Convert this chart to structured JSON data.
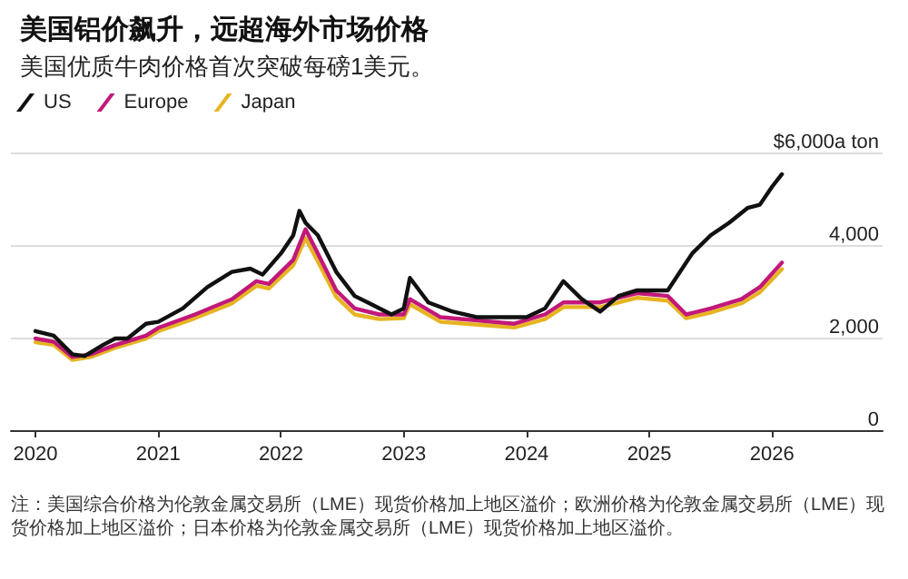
{
  "chart_data": {
    "type": "line",
    "title": "美国铝价飙升，远超海外市场价格",
    "subtitle": "美国优质牛肉价格首次突破每磅1美元。",
    "annotations": [
      "注：美国综合价格为伦敦金属交易所（LME）现货价格加上地区溢价；欧洲价格为伦敦金属交易所（LME）现货价格加上地区溢价；日本价格为伦敦金属交易所（LME）现货价格加上地区溢价。"
    ],
    "xlim": [
      2019.8,
      2026.9
    ],
    "xticks": [
      2020,
      2021,
      2022,
      2023,
      2024,
      2025,
      2026
    ],
    "ylim": [
      0,
      6000
    ],
    "yticks": [
      {
        "value": 0,
        "label": "0"
      },
      {
        "value": 2000,
        "label": "2,000"
      },
      {
        "value": 4000,
        "label": "4,000"
      },
      {
        "value": 6000,
        "label": "$6,000a ton"
      }
    ],
    "grid": "y",
    "legend": "top left",
    "marker": "none",
    "line_style": "solid",
    "series": [
      {
        "name": "Japan",
        "color": "#e6b422",
        "x": [
          2020.0,
          2020.15,
          2020.3,
          2020.45,
          2020.65,
          2020.9,
          2021.0,
          2021.3,
          2021.6,
          2021.8,
          2021.9,
          2022.1,
          2022.2,
          2022.3,
          2022.45,
          2022.6,
          2022.8,
          2023.0,
          2023.05,
          2023.3,
          2023.6,
          2023.9,
          2024.15,
          2024.3,
          2024.6,
          2024.9,
          2025.15,
          2025.3,
          2025.5,
          2025.75,
          2025.9,
          2026.08
        ],
        "values": [
          1900,
          1840,
          1520,
          1580,
          1780,
          1980,
          2140,
          2420,
          2740,
          3120,
          3060,
          3560,
          4150,
          3650,
          2880,
          2500,
          2400,
          2420,
          2720,
          2340,
          2280,
          2220,
          2400,
          2660,
          2660,
          2860,
          2800,
          2420,
          2540,
          2740,
          2980,
          3480
        ]
      },
      {
        "name": "Europe",
        "color": "#c2187a",
        "x": [
          2020.0,
          2020.15,
          2020.3,
          2020.45,
          2020.65,
          2020.9,
          2021.0,
          2021.3,
          2021.6,
          2021.8,
          2021.9,
          2022.1,
          2022.2,
          2022.3,
          2022.45,
          2022.6,
          2022.8,
          2023.0,
          2023.05,
          2023.3,
          2023.6,
          2023.9,
          2024.15,
          2024.3,
          2024.6,
          2024.9,
          2025.15,
          2025.3,
          2025.5,
          2025.75,
          2025.9,
          2026.08
        ],
        "values": [
          1980,
          1910,
          1580,
          1640,
          1840,
          2040,
          2210,
          2500,
          2830,
          3220,
          3160,
          3680,
          4340,
          3820,
          3020,
          2630,
          2500,
          2500,
          2830,
          2440,
          2370,
          2300,
          2500,
          2760,
          2760,
          2960,
          2900,
          2500,
          2630,
          2830,
          3090,
          3620
        ]
      },
      {
        "name": "US",
        "color": "#111111",
        "x": [
          2020.0,
          2020.15,
          2020.3,
          2020.4,
          2020.55,
          2020.65,
          2020.75,
          2020.9,
          2021.0,
          2021.2,
          2021.4,
          2021.6,
          2021.75,
          2021.85,
          2022.0,
          2022.1,
          2022.15,
          2022.2,
          2022.3,
          2022.45,
          2022.6,
          2022.75,
          2022.9,
          2023.0,
          2023.05,
          2023.2,
          2023.4,
          2023.6,
          2023.8,
          2024.0,
          2024.15,
          2024.3,
          2024.45,
          2024.6,
          2024.75,
          2024.9,
          2025.0,
          2025.15,
          2025.35,
          2025.5,
          2025.65,
          2025.8,
          2025.9,
          2026.0,
          2026.08
        ],
        "values": [
          2140,
          2040,
          1640,
          1600,
          1840,
          1980,
          1980,
          2300,
          2340,
          2630,
          3090,
          3420,
          3490,
          3360,
          3820,
          4210,
          4740,
          4480,
          4210,
          3420,
          2900,
          2700,
          2500,
          2630,
          3290,
          2760,
          2560,
          2440,
          2440,
          2440,
          2630,
          3220,
          2830,
          2560,
          2900,
          3020,
          3020,
          3020,
          3820,
          4210,
          4480,
          4800,
          4870,
          5260,
          5530
        ]
      }
    ]
  }
}
